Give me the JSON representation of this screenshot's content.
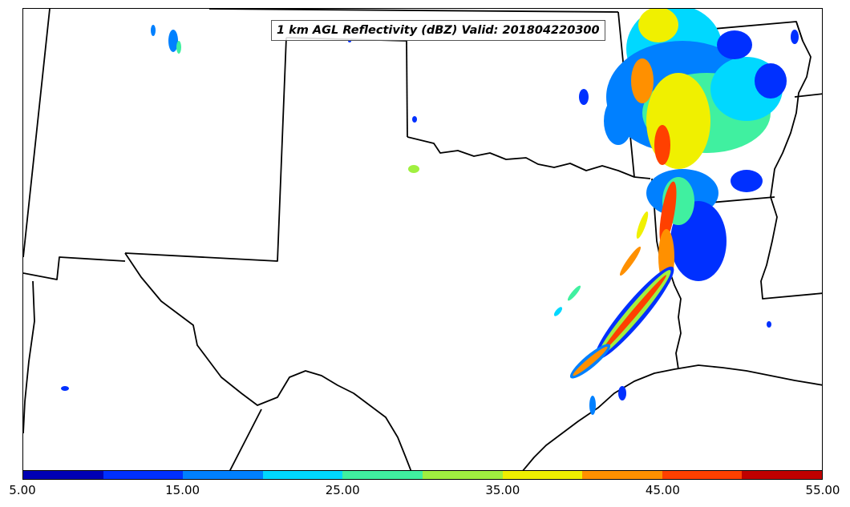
{
  "title": "1 km AGL Reflectivity (dBZ) Valid: 201804220300",
  "colorbar": {
    "min": 5,
    "max": 55,
    "step": 5,
    "colors": [
      "#0000b4",
      "#0030ff",
      "#0080ff",
      "#00d8ff",
      "#40f0a0",
      "#a0f040",
      "#f0f000",
      "#ff9000",
      "#ff4000",
      "#c00000"
    ],
    "tick_labels": [
      "5.00",
      "15.00",
      "25.00",
      "35.00",
      "45.00",
      "55.00"
    ]
  },
  "legend_reference_colors": {
    "dbz_5_10": "#0000b4",
    "dbz_10_15": "#0030ff",
    "dbz_15_20": "#0080ff",
    "dbz_20_25": "#00d8ff",
    "dbz_25_30": "#40f0a0",
    "dbz_30_35": "#a0f040",
    "dbz_35_40": "#f0f000",
    "dbz_40_45": "#ff9000",
    "dbz_45_50": "#ff4000",
    "dbz_50_55": "#c00000"
  }
}
